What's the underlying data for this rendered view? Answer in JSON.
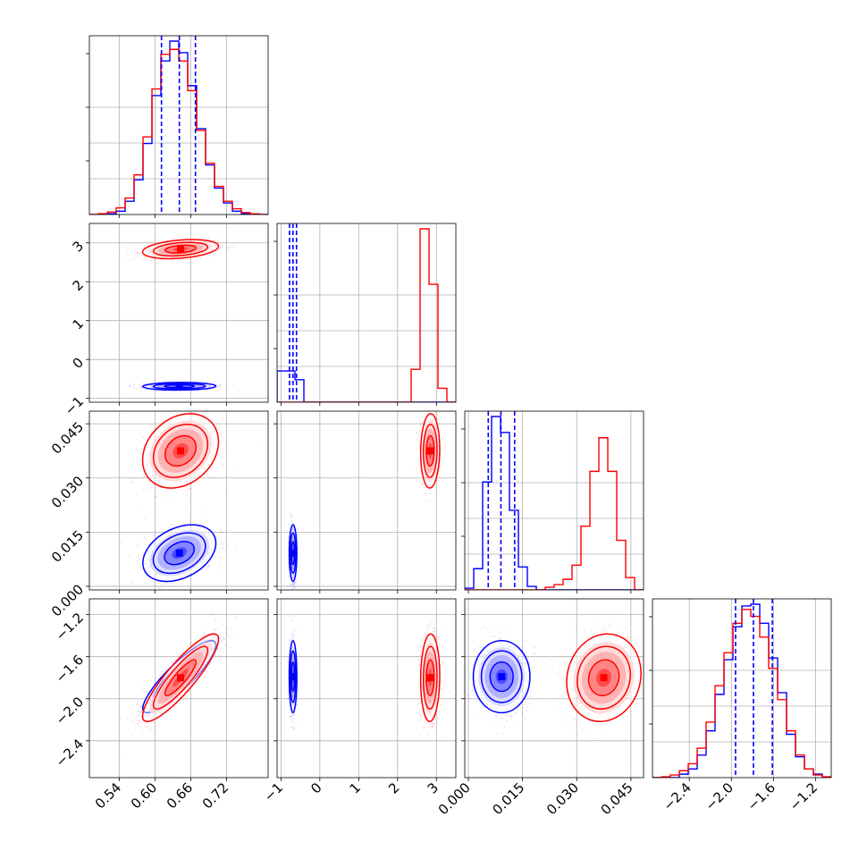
{
  "chart_data": {
    "type": "corner",
    "grid": true,
    "parameters": [
      {
        "ticks": [
          0.54,
          0.6,
          0.66,
          0.72
        ],
        "tick_labels": [
          "0.54",
          "0.60",
          "0.66",
          "0.72"
        ],
        "range": [
          0.49,
          0.79
        ]
      },
      {
        "ticks": [
          -1,
          0,
          1,
          2,
          3
        ],
        "tick_labels": [
          "−1",
          "0",
          "1",
          "2",
          "3"
        ],
        "range": [
          -1.1,
          3.5
        ]
      },
      {
        "ticks": [
          0.0,
          0.015,
          0.03,
          0.045
        ],
        "tick_labels": [
          "0.000",
          "0.015",
          "0.030",
          "0.045"
        ],
        "range": [
          -0.001,
          0.0485
        ]
      },
      {
        "ticks": [
          -2.4,
          -2.0,
          -1.6,
          -1.2
        ],
        "tick_labels": [
          "−2.4",
          "−2.0",
          "−1.6",
          "−1.2"
        ],
        "range": [
          -2.75,
          -1.05
        ]
      }
    ],
    "left_tick_labels": {
      "row1": [
        "−1",
        "0",
        "1",
        "2",
        "3"
      ],
      "row2": [
        "0.000",
        "0.015",
        "0.030",
        "0.045"
      ],
      "row3": [
        "−2.4",
        "−2.0",
        "−1.6",
        "−1.2"
      ]
    },
    "series": [
      {
        "color": "#0000ff",
        "quantiles": [
          [
            0.611,
            0.641,
            0.668
          ],
          [
            -0.78,
            -0.69,
            -0.6
          ],
          [
            0.0055,
            0.009,
            0.0128
          ],
          [
            -1.96,
            -1.79,
            -1.61
          ]
        ],
        "marginals": [
          {
            "edges": [
              0.49,
              0.505,
              0.52,
              0.535,
              0.55,
              0.565,
              0.58,
              0.595,
              0.61,
              0.625,
              0.64,
              0.655,
              0.67,
              0.685,
              0.7,
              0.715,
              0.73,
              0.745,
              0.76,
              0.775,
              0.79
            ],
            "counts": [
              0.0,
              0.0,
              0.005,
              0.02,
              0.08,
              0.21,
              0.43,
              0.72,
              0.93,
              1.05,
              0.98,
              0.78,
              0.52,
              0.3,
              0.16,
              0.07,
              0.02,
              0.005,
              0.0,
              0.0
            ]
          },
          {
            "edges": [
              -1.1,
              -0.87,
              -0.64,
              -0.41,
              -0.18,
              0.05,
              0.28,
              0.51,
              0.74,
              0.97,
              1.2,
              1.43,
              1.66,
              1.89,
              2.12,
              2.35,
              2.58,
              2.81,
              3.04,
              3.27,
              3.5
            ],
            "counts": [
              0.18,
              0.18,
              0.13,
              0.0,
              0.0,
              0.0,
              0.0,
              0.0,
              0.0,
              0.0,
              0.0,
              0.0,
              0.0,
              0.0,
              0.0,
              0.0,
              0.0,
              0.0,
              0.0,
              0.0
            ]
          },
          {
            "edges": [
              -0.001,
              0.001475,
              0.00395,
              0.006425,
              0.0089,
              0.011375,
              0.01385,
              0.016325,
              0.0188,
              0.021275,
              0.02375,
              0.026225,
              0.0287,
              0.031175,
              0.03365,
              0.036125,
              0.0386,
              0.041075,
              0.04355,
              0.046025,
              0.0485
            ],
            "counts": [
              0.01,
              0.12,
              0.61,
              0.98,
              0.89,
              0.45,
              0.13,
              0.02,
              0.0,
              0.0,
              0.0,
              0.0,
              0.0,
              0.0,
              0.0,
              0.0,
              0.0,
              0.0,
              0.0,
              0.0
            ]
          },
          {
            "edges": [
              -2.75,
              -2.665,
              -2.58,
              -2.495,
              -2.41,
              -2.325,
              -2.24,
              -2.155,
              -2.07,
              -1.985,
              -1.9,
              -1.815,
              -1.73,
              -1.645,
              -1.56,
              -1.475,
              -1.39,
              -1.305,
              -1.22,
              -1.135,
              -1.05
            ],
            "counts": [
              0.0,
              0.0,
              0.0,
              0.02,
              0.05,
              0.13,
              0.27,
              0.48,
              0.68,
              0.87,
              0.99,
              1.0,
              0.89,
              0.69,
              0.49,
              0.25,
              0.12,
              0.05,
              0.02,
              0.0
            ]
          }
        ],
        "pairs": {
          "1_0": {
            "mean": [
              0.641,
              -0.69
            ],
            "sd": [
              0.025,
              0.04
            ],
            "rho": 0.05
          },
          "2_0": {
            "mean": [
              0.641,
              0.0092
            ],
            "sd": [
              0.025,
              0.0032
            ],
            "rho": 0.35
          },
          "3_0": {
            "mean": [
              0.641,
              -1.79
            ],
            "sd": [
              0.025,
              0.14
            ],
            "rho": 0.88
          },
          "2_1": {
            "mean": [
              -0.69,
              0.0092
            ],
            "sd": [
              0.04,
              0.0032
            ],
            "rho": 0.0
          },
          "3_1": {
            "mean": [
              -0.69,
              -1.79
            ],
            "sd": [
              0.04,
              0.14
            ],
            "rho": 0.0
          },
          "3_2": {
            "mean": [
              0.0092,
              -1.79
            ],
            "sd": [
              0.0032,
              0.14
            ],
            "rho": 0.0
          }
        }
      },
      {
        "color": "#ff0000",
        "quantiles": [
          [
            0.615,
            0.643,
            0.672
          ],
          [
            2.74,
            2.84,
            2.93
          ],
          [
            0.033,
            0.0375,
            0.0418
          ],
          [
            -1.97,
            -1.8,
            -1.63
          ]
        ],
        "marginals": [
          {
            "edges": [
              0.49,
              0.505,
              0.52,
              0.535,
              0.55,
              0.565,
              0.58,
              0.595,
              0.61,
              0.625,
              0.64,
              0.655,
              0.67,
              0.685,
              0.7,
              0.715,
              0.73,
              0.745,
              0.76,
              0.775,
              0.79
            ],
            "counts": [
              0.0,
              0.005,
              0.015,
              0.04,
              0.1,
              0.24,
              0.47,
              0.76,
              0.97,
              1.0,
              0.93,
              0.75,
              0.51,
              0.31,
              0.17,
              0.08,
              0.035,
              0.012,
              0.004,
              0.0
            ]
          },
          {
            "edges": [
              -1.1,
              -0.87,
              -0.64,
              -0.41,
              -0.18,
              0.05,
              0.28,
              0.51,
              0.74,
              0.97,
              1.2,
              1.43,
              1.66,
              1.89,
              2.12,
              2.35,
              2.58,
              2.81,
              3.04,
              3.27,
              3.5
            ],
            "counts": [
              0.0,
              0.0,
              0.0,
              0.0,
              0.0,
              0.0,
              0.0,
              0.0,
              0.0,
              0.0,
              0.0,
              0.0,
              0.0,
              0.0,
              0.0,
              0.19,
              1.0,
              0.68,
              0.08,
              0.0
            ]
          },
          {
            "edges": [
              -0.001,
              0.001475,
              0.00395,
              0.006425,
              0.0089,
              0.011375,
              0.01385,
              0.016325,
              0.0188,
              0.021275,
              0.02375,
              0.026225,
              0.0287,
              0.031175,
              0.03365,
              0.036125,
              0.0386,
              0.041075,
              0.04355,
              0.046025,
              0.0485
            ],
            "counts": [
              0.0,
              0.0,
              0.0,
              0.0,
              0.0,
              0.0,
              0.0,
              0.0,
              0.0,
              0.015,
              0.03,
              0.06,
              0.14,
              0.36,
              0.67,
              0.86,
              0.67,
              0.28,
              0.07,
              0.0
            ]
          },
          {
            "edges": [
              -2.75,
              -2.665,
              -2.58,
              -2.495,
              -2.41,
              -2.325,
              -2.24,
              -2.155,
              -2.07,
              -1.985,
              -1.9,
              -1.815,
              -1.73,
              -1.645,
              -1.56,
              -1.475,
              -1.39,
              -1.305,
              -1.22,
              -1.135,
              -1.05
            ],
            "counts": [
              0.0,
              0.005,
              0.015,
              0.04,
              0.08,
              0.17,
              0.32,
              0.53,
              0.72,
              0.89,
              0.97,
              0.93,
              0.81,
              0.63,
              0.45,
              0.27,
              0.13,
              0.05,
              0.015,
              0.005
            ]
          }
        ],
        "pairs": {
          "1_0": {
            "mean": [
              0.643,
              2.84
            ],
            "sd": [
              0.026,
              0.1
            ],
            "rho": 0.3
          },
          "2_0": {
            "mean": [
              0.643,
              0.0375
            ],
            "sd": [
              0.026,
              0.0042
            ],
            "rho": 0.25
          },
          "3_0": {
            "mean": [
              0.643,
              -1.8
            ],
            "sd": [
              0.026,
              0.17
            ],
            "rho": 0.88
          },
          "2_1": {
            "mean": [
              2.84,
              0.0375
            ],
            "sd": [
              0.1,
              0.0042
            ],
            "rho": 0.05
          },
          "3_1": {
            "mean": [
              2.84,
              -1.8
            ],
            "sd": [
              0.1,
              0.17
            ],
            "rho": 0.05
          },
          "3_2": {
            "mean": [
              0.0375,
              -1.8
            ],
            "sd": [
              0.0042,
              0.17
            ],
            "rho": 0.1
          }
        }
      }
    ]
  }
}
